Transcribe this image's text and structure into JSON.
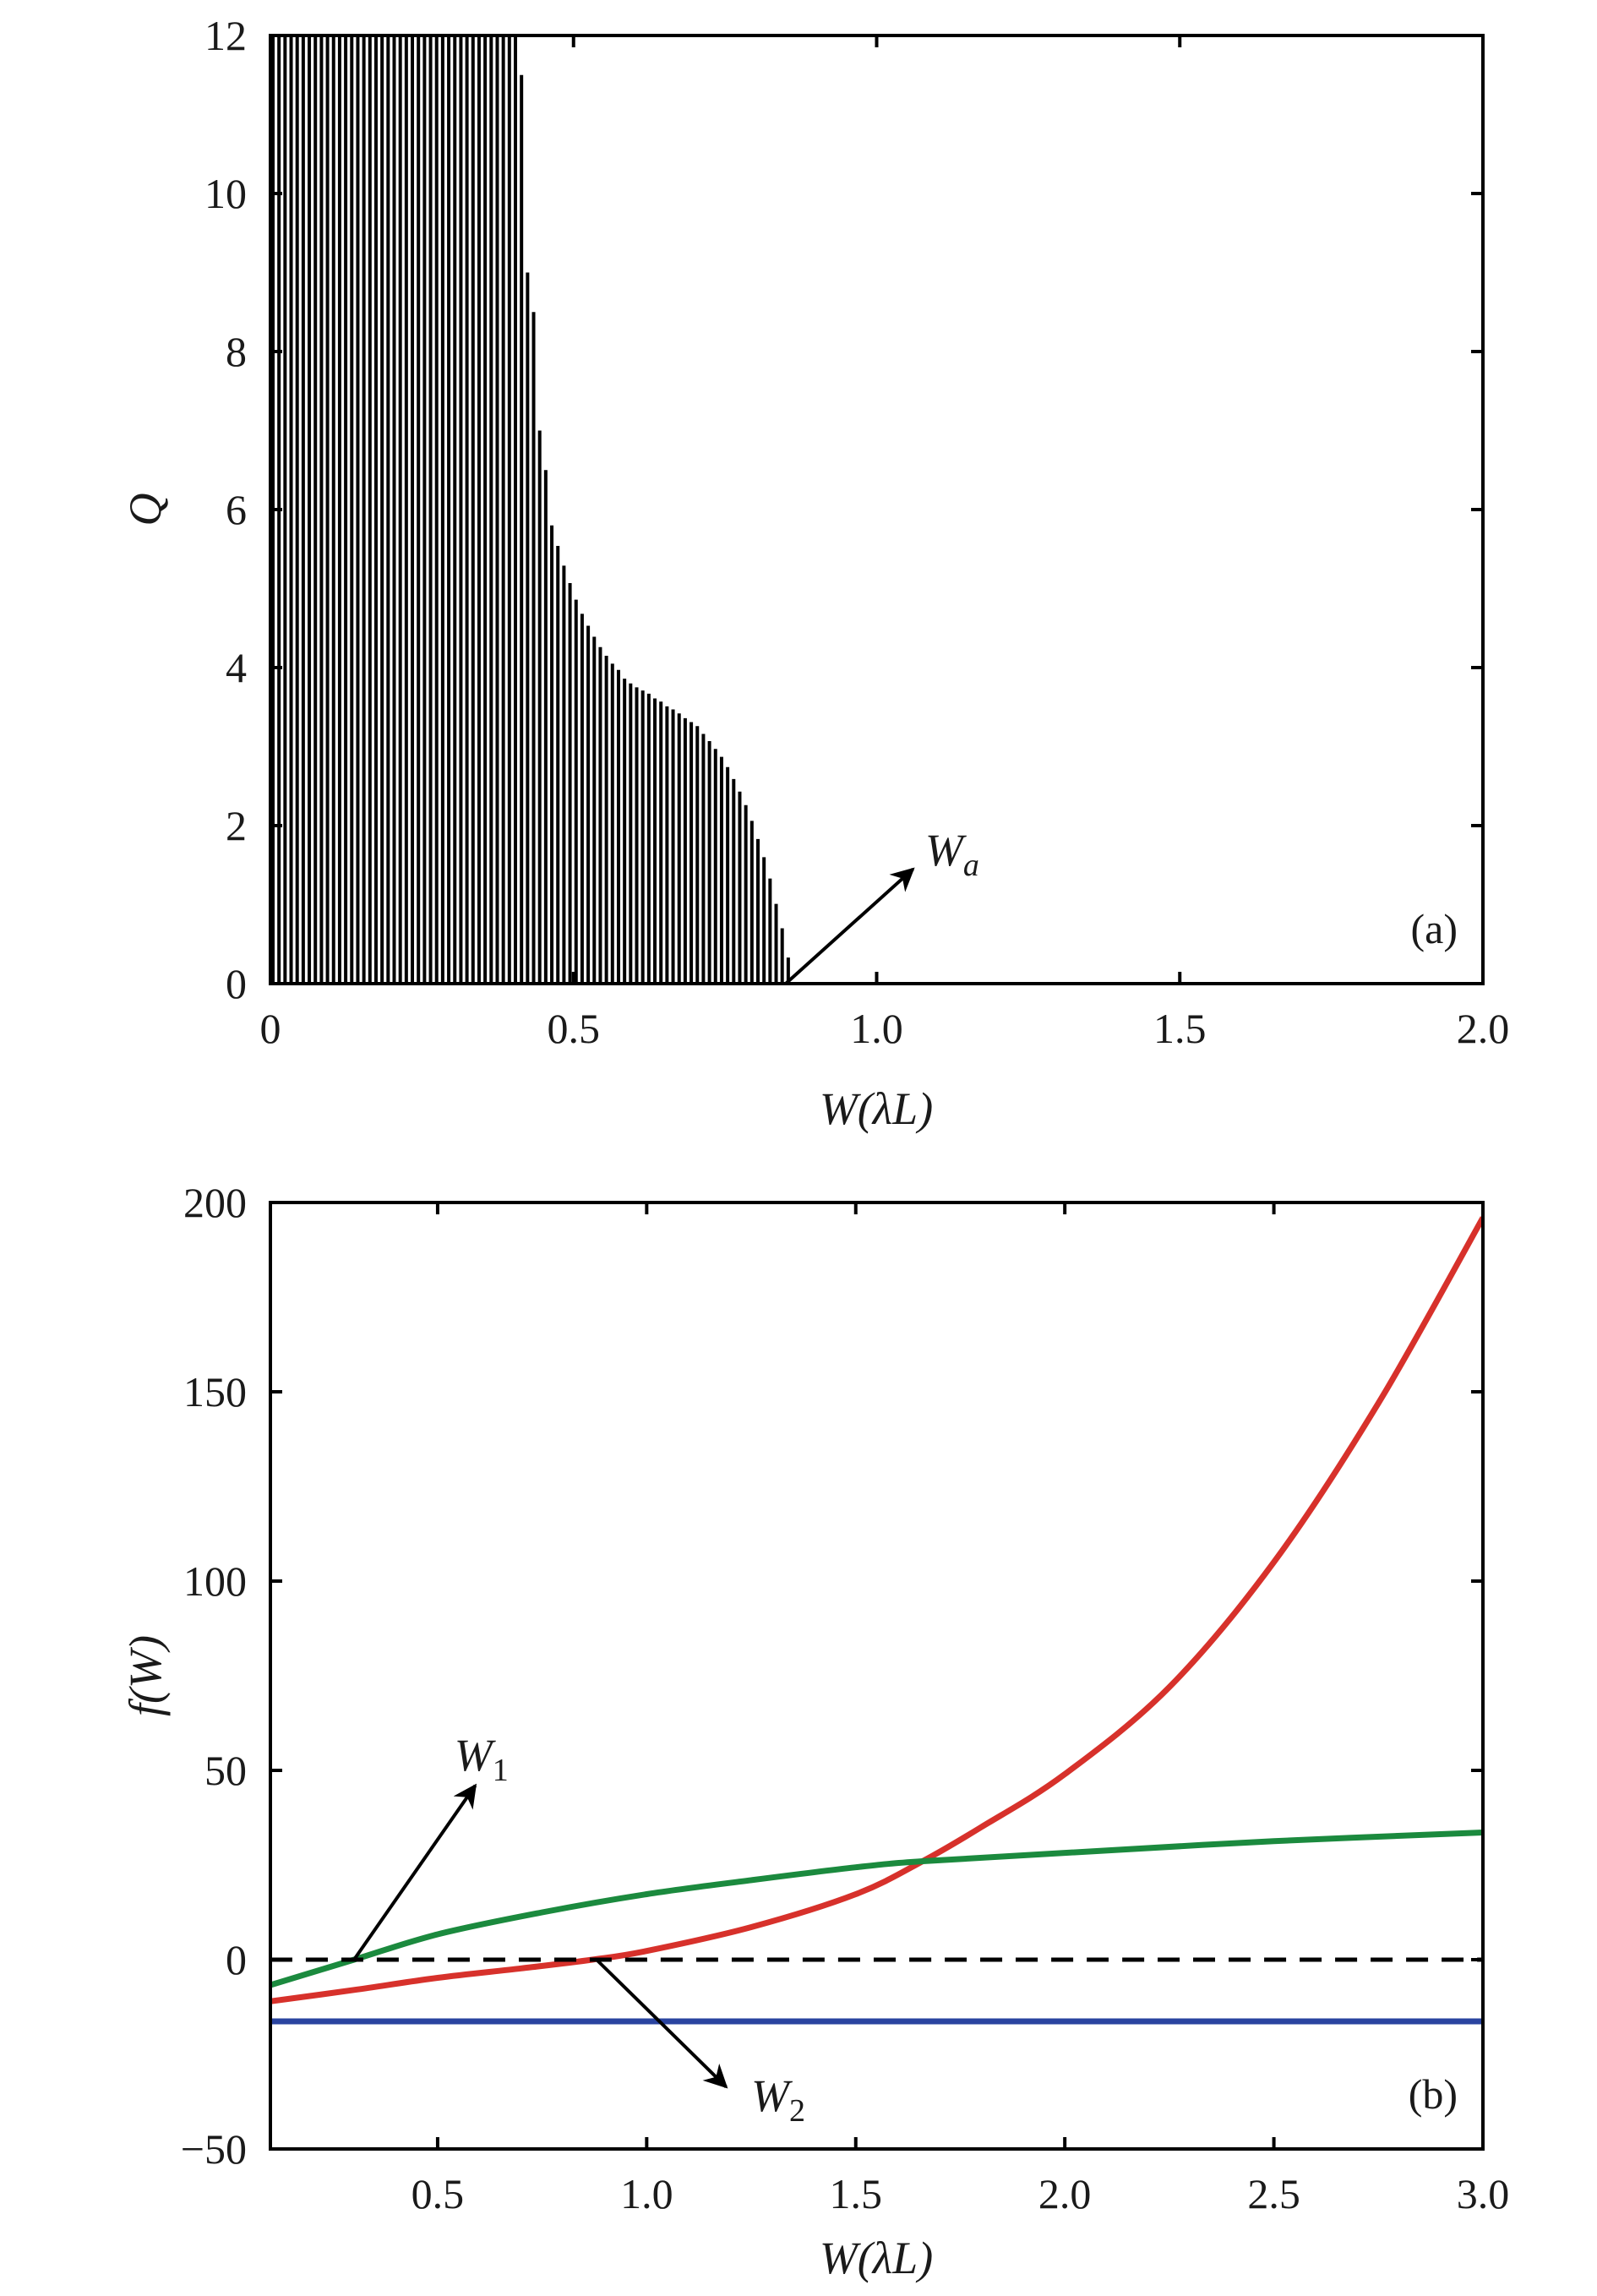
{
  "chart_data": [
    {
      "type": "bar",
      "panel_label": "(a)",
      "xlabel": "W(λL)",
      "ylabel": "Q",
      "xlim": [
        0,
        2.0
      ],
      "ylim": [
        0,
        12
      ],
      "xticks": [
        "0",
        "0.5",
        "1.0",
        "1.5",
        "2.0"
      ],
      "xtick_values": [
        0,
        0.5,
        1.0,
        1.5,
        2.0
      ],
      "yticks": [
        "0",
        "2",
        "4",
        "6",
        "8",
        "10",
        "12"
      ],
      "ytick_values": [
        0,
        2,
        4,
        6,
        8,
        10,
        12
      ],
      "bar_step": 0.01,
      "bar_x_start": 0,
      "values": [
        12,
        12,
        12,
        12,
        12,
        12,
        12,
        12,
        12,
        12,
        12,
        12,
        12,
        12,
        12,
        12,
        12,
        12,
        12,
        12,
        12,
        12,
        12,
        12,
        12,
        12,
        12,
        12,
        12,
        12,
        12,
        12,
        12,
        12,
        12,
        12,
        12,
        12,
        12,
        12,
        12,
        11.5,
        9.0,
        8.5,
        7.0,
        6.5,
        5.8,
        5.54,
        5.29,
        5.07,
        4.86,
        4.68,
        4.53,
        4.39,
        4.26,
        4.15,
        4.05,
        3.97,
        3.86,
        3.8,
        3.75,
        3.71,
        3.67,
        3.61,
        3.57,
        3.51,
        3.47,
        3.42,
        3.36,
        3.31,
        3.26,
        3.16,
        3.07,
        2.97,
        2.87,
        2.74,
        2.59,
        2.43,
        2.26,
        2.06,
        1.83,
        1.6,
        1.33,
        1.01,
        0.7,
        0.33
      ],
      "annotations": [
        {
          "text": "Wa",
          "main": "W",
          "sub": "a",
          "arrow_from": [
            0.85,
            0
          ],
          "arrow_to": [
            1.06,
            1.45
          ],
          "label_at": [
            1.08,
            1.5
          ]
        }
      ]
    },
    {
      "type": "line",
      "panel_label": "(b)",
      "xlabel": "W(λL)",
      "ylabel": "f(W)",
      "xlim": [
        0.1,
        3.0
      ],
      "ylim": [
        -50,
        200
      ],
      "xticks": [
        "0.5",
        "1.0",
        "1.5",
        "2.0",
        "2.5",
        "3.0"
      ],
      "xtick_values": [
        0.5,
        1.0,
        1.5,
        2.0,
        2.5,
        3.0
      ],
      "yticks": [
        "−50",
        "0",
        "50",
        "100",
        "150",
        "200"
      ],
      "ytick_values": [
        -50,
        0,
        50,
        100,
        150,
        200
      ],
      "series": [
        {
          "name": "red-curve",
          "color": "#d7312b",
          "dash": false,
          "x": [
            0.1,
            0.3,
            0.5,
            0.7,
            0.87,
            1.0,
            1.25,
            1.5,
            1.66,
            1.8,
            2.0,
            2.25,
            2.5,
            2.75,
            3.0
          ],
          "y": [
            -11,
            -8,
            -4.8,
            -2.3,
            0,
            2.3,
            8.6,
            17.3,
            26,
            35,
            49,
            72,
            105,
            147,
            196
          ]
        },
        {
          "name": "green-curve",
          "color": "#1b8a3e",
          "dash": false,
          "x": [
            0.1,
            0.3,
            0.5,
            0.75,
            1.0,
            1.25,
            1.5,
            1.66,
            2.0,
            2.5,
            3.0
          ],
          "y": [
            -6.7,
            0,
            6.7,
            12.5,
            17.3,
            21,
            24.4,
            26,
            28.2,
            31.3,
            33.6
          ]
        },
        {
          "name": "blue-line",
          "color": "#2a44a0",
          "dash": false,
          "x": [
            0.1,
            3.0
          ],
          "y": [
            -16.3,
            -16.3
          ]
        },
        {
          "name": "zero-dashed-line",
          "color": "#000000",
          "dash": true,
          "x": [
            0.1,
            3.0
          ],
          "y": [
            0,
            0
          ]
        }
      ],
      "annotations": [
        {
          "text": "W1",
          "main": "W",
          "sub": "1",
          "arrow_from": [
            0.3,
            0
          ],
          "arrow_to": [
            0.59,
            46
          ],
          "label_at": [
            0.54,
            50
          ]
        },
        {
          "text": "W2",
          "main": "W",
          "sub": "2",
          "arrow_from": [
            0.88,
            0
          ],
          "arrow_to": [
            1.19,
            -33.6
          ],
          "label_at": [
            1.25,
            -40
          ]
        }
      ]
    }
  ]
}
